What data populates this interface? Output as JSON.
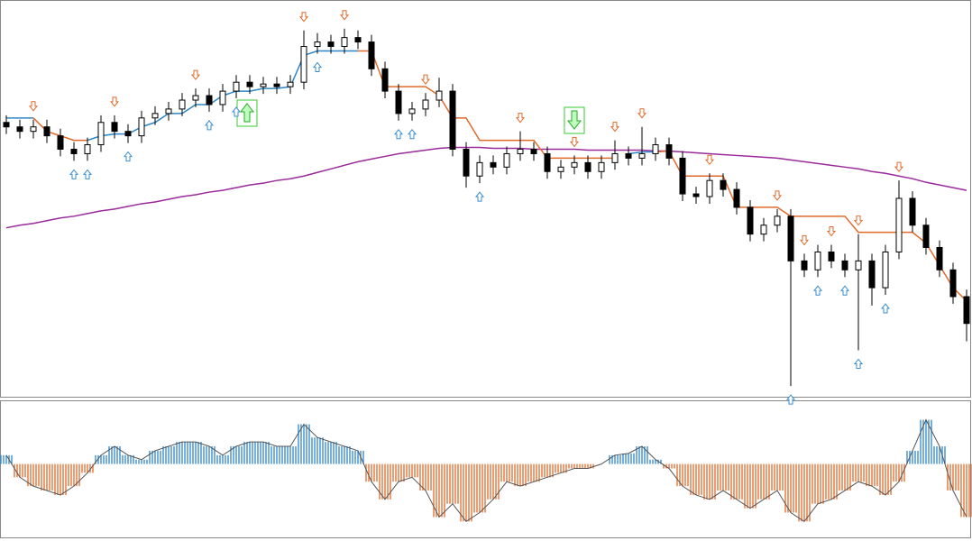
{
  "chart_data": {
    "type": "candlestick",
    "open": [
      305,
      300,
      295,
      300,
      290,
      275,
      270,
      280,
      305,
      295,
      290,
      310,
      315,
      320,
      330,
      335,
      325,
      340,
      350,
      345,
      348,
      345,
      350,
      390,
      395,
      390,
      400,
      395,
      365,
      340,
      315,
      320,
      330,
      340,
      275,
      245,
      260,
      255,
      270,
      275,
      270,
      250,
      255,
      260,
      250,
      260,
      270,
      265,
      270,
      280,
      265,
      225,
      222,
      240,
      230,
      210,
      180,
      190,
      200,
      150,
      140,
      160,
      150,
      140,
      150,
      120,
      160,
      220,
      190,
      165,
      140,
      110
    ],
    "close": [
      300,
      295,
      300,
      290,
      275,
      270,
      280,
      305,
      295,
      290,
      310,
      315,
      320,
      330,
      335,
      325,
      340,
      350,
      345,
      348,
      345,
      350,
      390,
      395,
      390,
      400,
      395,
      365,
      340,
      315,
      320,
      330,
      340,
      275,
      245,
      260,
      255,
      270,
      275,
      270,
      250,
      255,
      260,
      250,
      260,
      270,
      265,
      270,
      280,
      265,
      225,
      222,
      240,
      230,
      210,
      180,
      190,
      200,
      150,
      140,
      160,
      150,
      140,
      150,
      120,
      160,
      220,
      190,
      165,
      140,
      110,
      80
    ],
    "high": [
      313,
      308,
      308,
      308,
      298,
      283,
      288,
      313,
      313,
      303,
      318,
      323,
      328,
      338,
      343,
      343,
      348,
      358,
      358,
      356,
      356,
      358,
      408,
      405,
      403,
      410,
      408,
      403,
      373,
      348,
      328,
      338,
      355,
      348,
      283,
      268,
      268,
      278,
      295,
      283,
      278,
      263,
      268,
      268,
      268,
      285,
      278,
      300,
      288,
      288,
      273,
      233,
      248,
      248,
      238,
      218,
      198,
      208,
      208,
      158,
      168,
      168,
      158,
      180,
      158,
      168,
      240,
      228,
      198,
      173,
      148,
      118
    ],
    "low": [
      292,
      287,
      287,
      282,
      267,
      262,
      262,
      272,
      287,
      282,
      282,
      302,
      307,
      312,
      322,
      317,
      317,
      332,
      337,
      337,
      337,
      337,
      342,
      382,
      382,
      382,
      387,
      357,
      332,
      307,
      307,
      312,
      322,
      267,
      232,
      237,
      247,
      247,
      262,
      262,
      242,
      242,
      247,
      242,
      242,
      252,
      257,
      257,
      262,
      257,
      217,
      214,
      214,
      222,
      202,
      172,
      172,
      182,
      10,
      132,
      132,
      142,
      132,
      50,
      100,
      112,
      152,
      182,
      157,
      132,
      102,
      60
    ],
    "ylim": [
      0,
      440
    ],
    "up_color": "#000000",
    "stops": [
      {
        "color": "#2e86c8",
        "values": [
          310,
          310,
          310,
          null,
          null,
          null,
          285,
          290,
          292,
          292,
          300,
          305,
          315,
          315,
          325,
          325,
          335,
          340,
          340,
          343,
          343,
          345,
          380,
          385,
          385,
          385,
          385,
          null,
          null,
          null,
          null,
          null,
          null,
          null,
          null,
          null,
          null,
          null,
          null,
          null,
          null,
          null,
          null,
          null,
          null,
          null,
          270,
          272,
          272,
          null,
          null,
          null,
          null,
          null,
          null,
          null,
          null,
          null,
          null,
          null,
          null,
          null,
          null,
          null,
          null,
          null,
          null,
          null,
          null,
          null,
          null,
          null
        ]
      },
      {
        "color": "#e06a2a",
        "values": [
          null,
          null,
          310,
          295,
          290,
          285,
          285,
          null,
          null,
          null,
          null,
          null,
          null,
          null,
          null,
          null,
          null,
          null,
          null,
          null,
          null,
          null,
          null,
          null,
          null,
          null,
          385,
          385,
          345,
          345,
          345,
          345,
          335,
          310,
          310,
          285,
          285,
          285,
          285,
          285,
          265,
          265,
          265,
          265,
          265,
          265,
          null,
          null,
          272,
          273,
          245,
          245,
          245,
          245,
          210,
          210,
          210,
          210,
          200,
          200,
          200,
          200,
          200,
          182,
          182,
          182,
          182,
          182,
          170,
          145,
          120,
          105
        ]
      }
    ],
    "ma": {
      "color": "#9b2a9b",
      "values": [
        187,
        190,
        192,
        195,
        198,
        200,
        203,
        206,
        208,
        211,
        214,
        216,
        219,
        222,
        224,
        227,
        229,
        232,
        235,
        237,
        240,
        242,
        245,
        249,
        253,
        257,
        261,
        264,
        267,
        270,
        272,
        274,
        276,
        277,
        277,
        277,
        276,
        276,
        276,
        275,
        275,
        275,
        275,
        274,
        274,
        274,
        274,
        274,
        273,
        273,
        272,
        271,
        270,
        269,
        268,
        267,
        266,
        265,
        263,
        261,
        259,
        257,
        255,
        253,
        250,
        248,
        245,
        242,
        238,
        235,
        232,
        229
      ]
    },
    "up_arrows": [
      5,
      6,
      9,
      15,
      17,
      23,
      29,
      30,
      35,
      58,
      60,
      62,
      63,
      65
    ],
    "down_arrows": [
      2,
      8,
      14,
      22,
      25,
      31,
      38,
      42,
      45,
      47,
      52,
      57,
      59,
      61,
      63,
      66
    ],
    "up_arrow_color": "#3a8ed0",
    "down_arrow_color": "#e06a2a",
    "histogram": {
      "values": [
        10,
        -15,
        -25,
        -30,
        -35,
        -25,
        -10,
        10,
        20,
        10,
        5,
        15,
        20,
        25,
        25,
        20,
        10,
        20,
        25,
        25,
        20,
        20,
        45,
        30,
        25,
        20,
        15,
        -20,
        -40,
        -20,
        -15,
        -30,
        -60,
        -45,
        -65,
        -55,
        -40,
        -20,
        -25,
        -20,
        -15,
        -10,
        -5,
        -5,
        0,
        10,
        12,
        20,
        5,
        -5,
        -25,
        -35,
        -40,
        -30,
        -40,
        -50,
        -40,
        -30,
        -55,
        -65,
        -45,
        -40,
        -30,
        -20,
        -25,
        -35,
        -20,
        15,
        50,
        20,
        -30,
        -60
      ],
      "ylim": [
        -82,
        70
      ],
      "up_color": "#2e86c8",
      "down_color": "#e06a2a"
    }
  }
}
